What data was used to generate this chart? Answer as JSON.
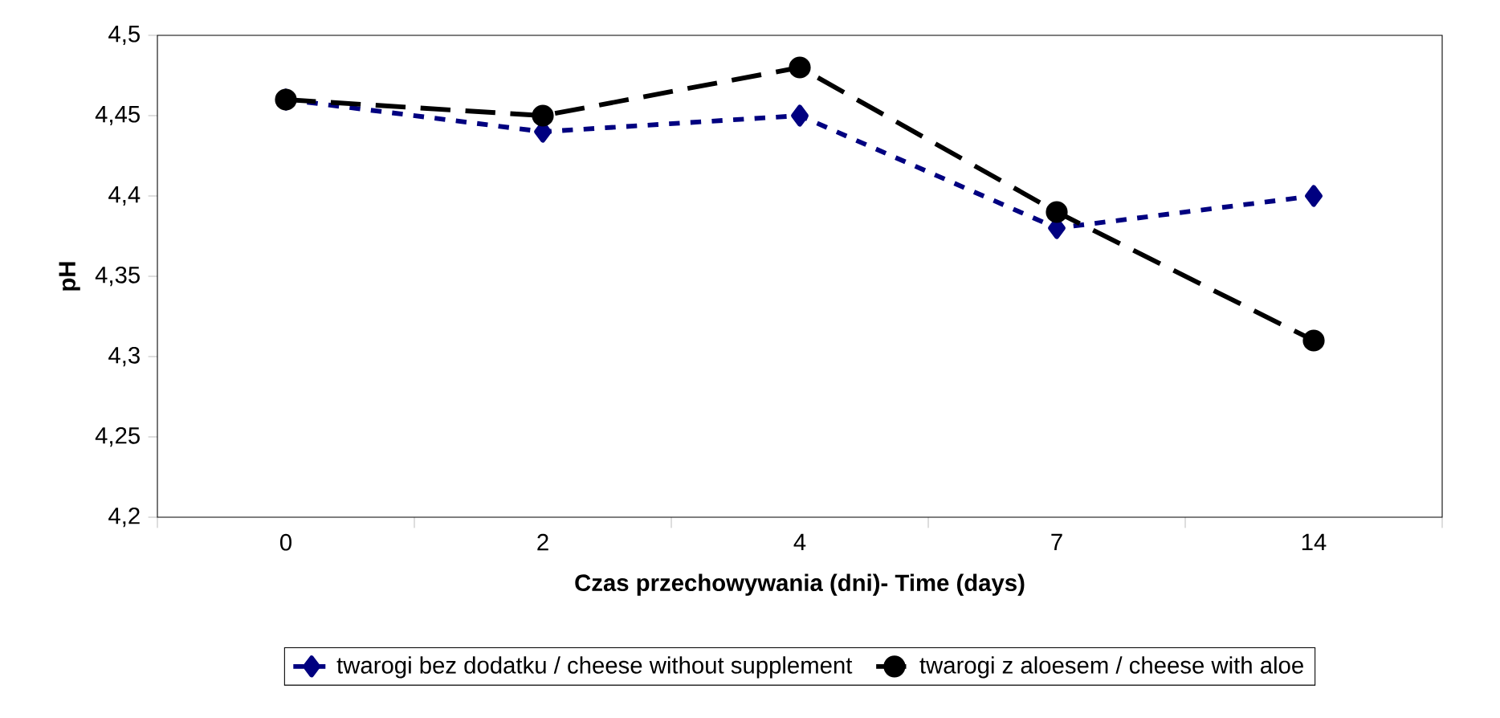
{
  "chart_data": {
    "type": "line",
    "xlabel": "Czas przechowywania (dni)- Time (days)",
    "ylabel": "pH",
    "categories": [
      "0",
      "2",
      "4",
      "7",
      "14"
    ],
    "series": [
      {
        "name": "twarogi bez dodatku / cheese without supplement",
        "color": "#000080",
        "values": [
          4.46,
          4.44,
          4.45,
          4.38,
          4.4
        ],
        "marker": "diamond",
        "line_style": "dotted"
      },
      {
        "name": "twarogi z aloesem / cheese with aloe",
        "color": "#000000",
        "values": [
          4.46,
          4.45,
          4.48,
          4.39,
          4.31
        ],
        "marker": "circle",
        "line_style": "dashed"
      }
    ],
    "ylim": [
      4.2,
      4.5
    ],
    "yticks": [
      {
        "value": 4.2,
        "label": "4,2"
      },
      {
        "value": 4.25,
        "label": "4,25"
      },
      {
        "value": 4.3,
        "label": "4,3"
      },
      {
        "value": 4.35,
        "label": "4,35"
      },
      {
        "value": 4.4,
        "label": "4,4"
      },
      {
        "value": 4.45,
        "label": "4,45"
      },
      {
        "value": 4.5,
        "label": "4,5"
      }
    ],
    "grid": false,
    "legend": "bottom"
  }
}
